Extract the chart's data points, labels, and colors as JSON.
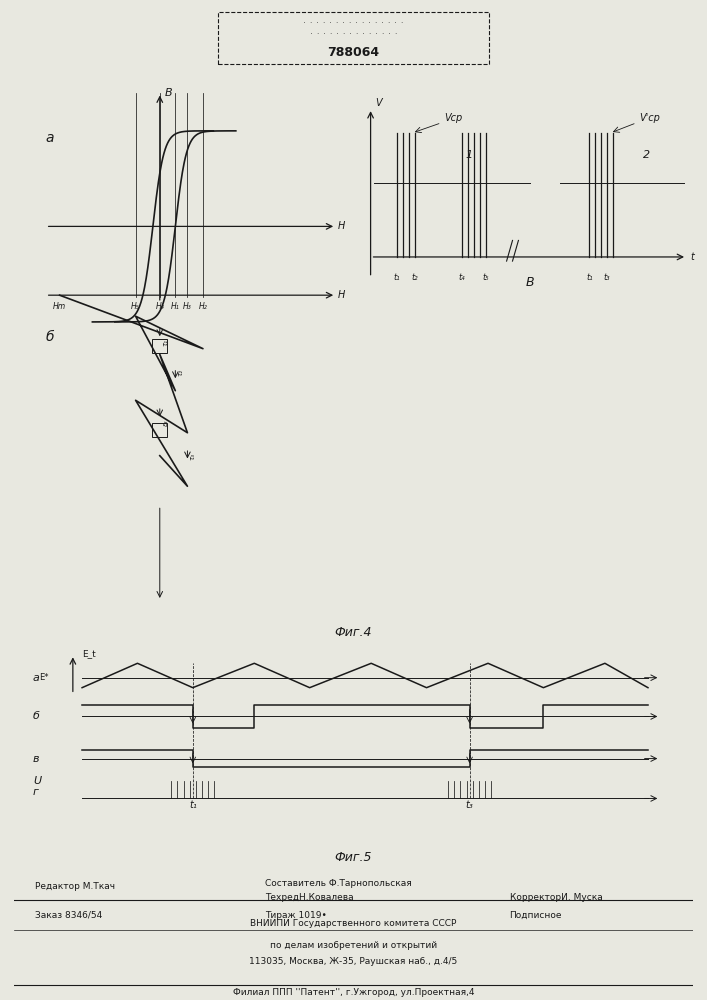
{
  "bg_color": "#e8e8e0",
  "line_color": "#1a1a1a",
  "patent_number": "788064",
  "editor_line": "Редактор М.Ткач",
  "composer_line": "Составитель Ф.Тарнопольская",
  "techred_line": "ТехредН.Ковалева",
  "corrector_line": "КорректорИ. Муска",
  "order_line": "Заказ 8346/54",
  "tirazh_line": "Тираж 1019•",
  "podpisnoe_line": "Подписное",
  "vnipi_line1": "ВНИИПИ Государственного комитета СССР",
  "vnipi_line2": "по делам изобретений и открытий",
  "vnipi_line3": "113035, Москва, Ж-35, Раушская наб., д.4/5",
  "filial_line": "Филиал ППП ''Патент'', г.Ужгород, ул.Проектная,4"
}
